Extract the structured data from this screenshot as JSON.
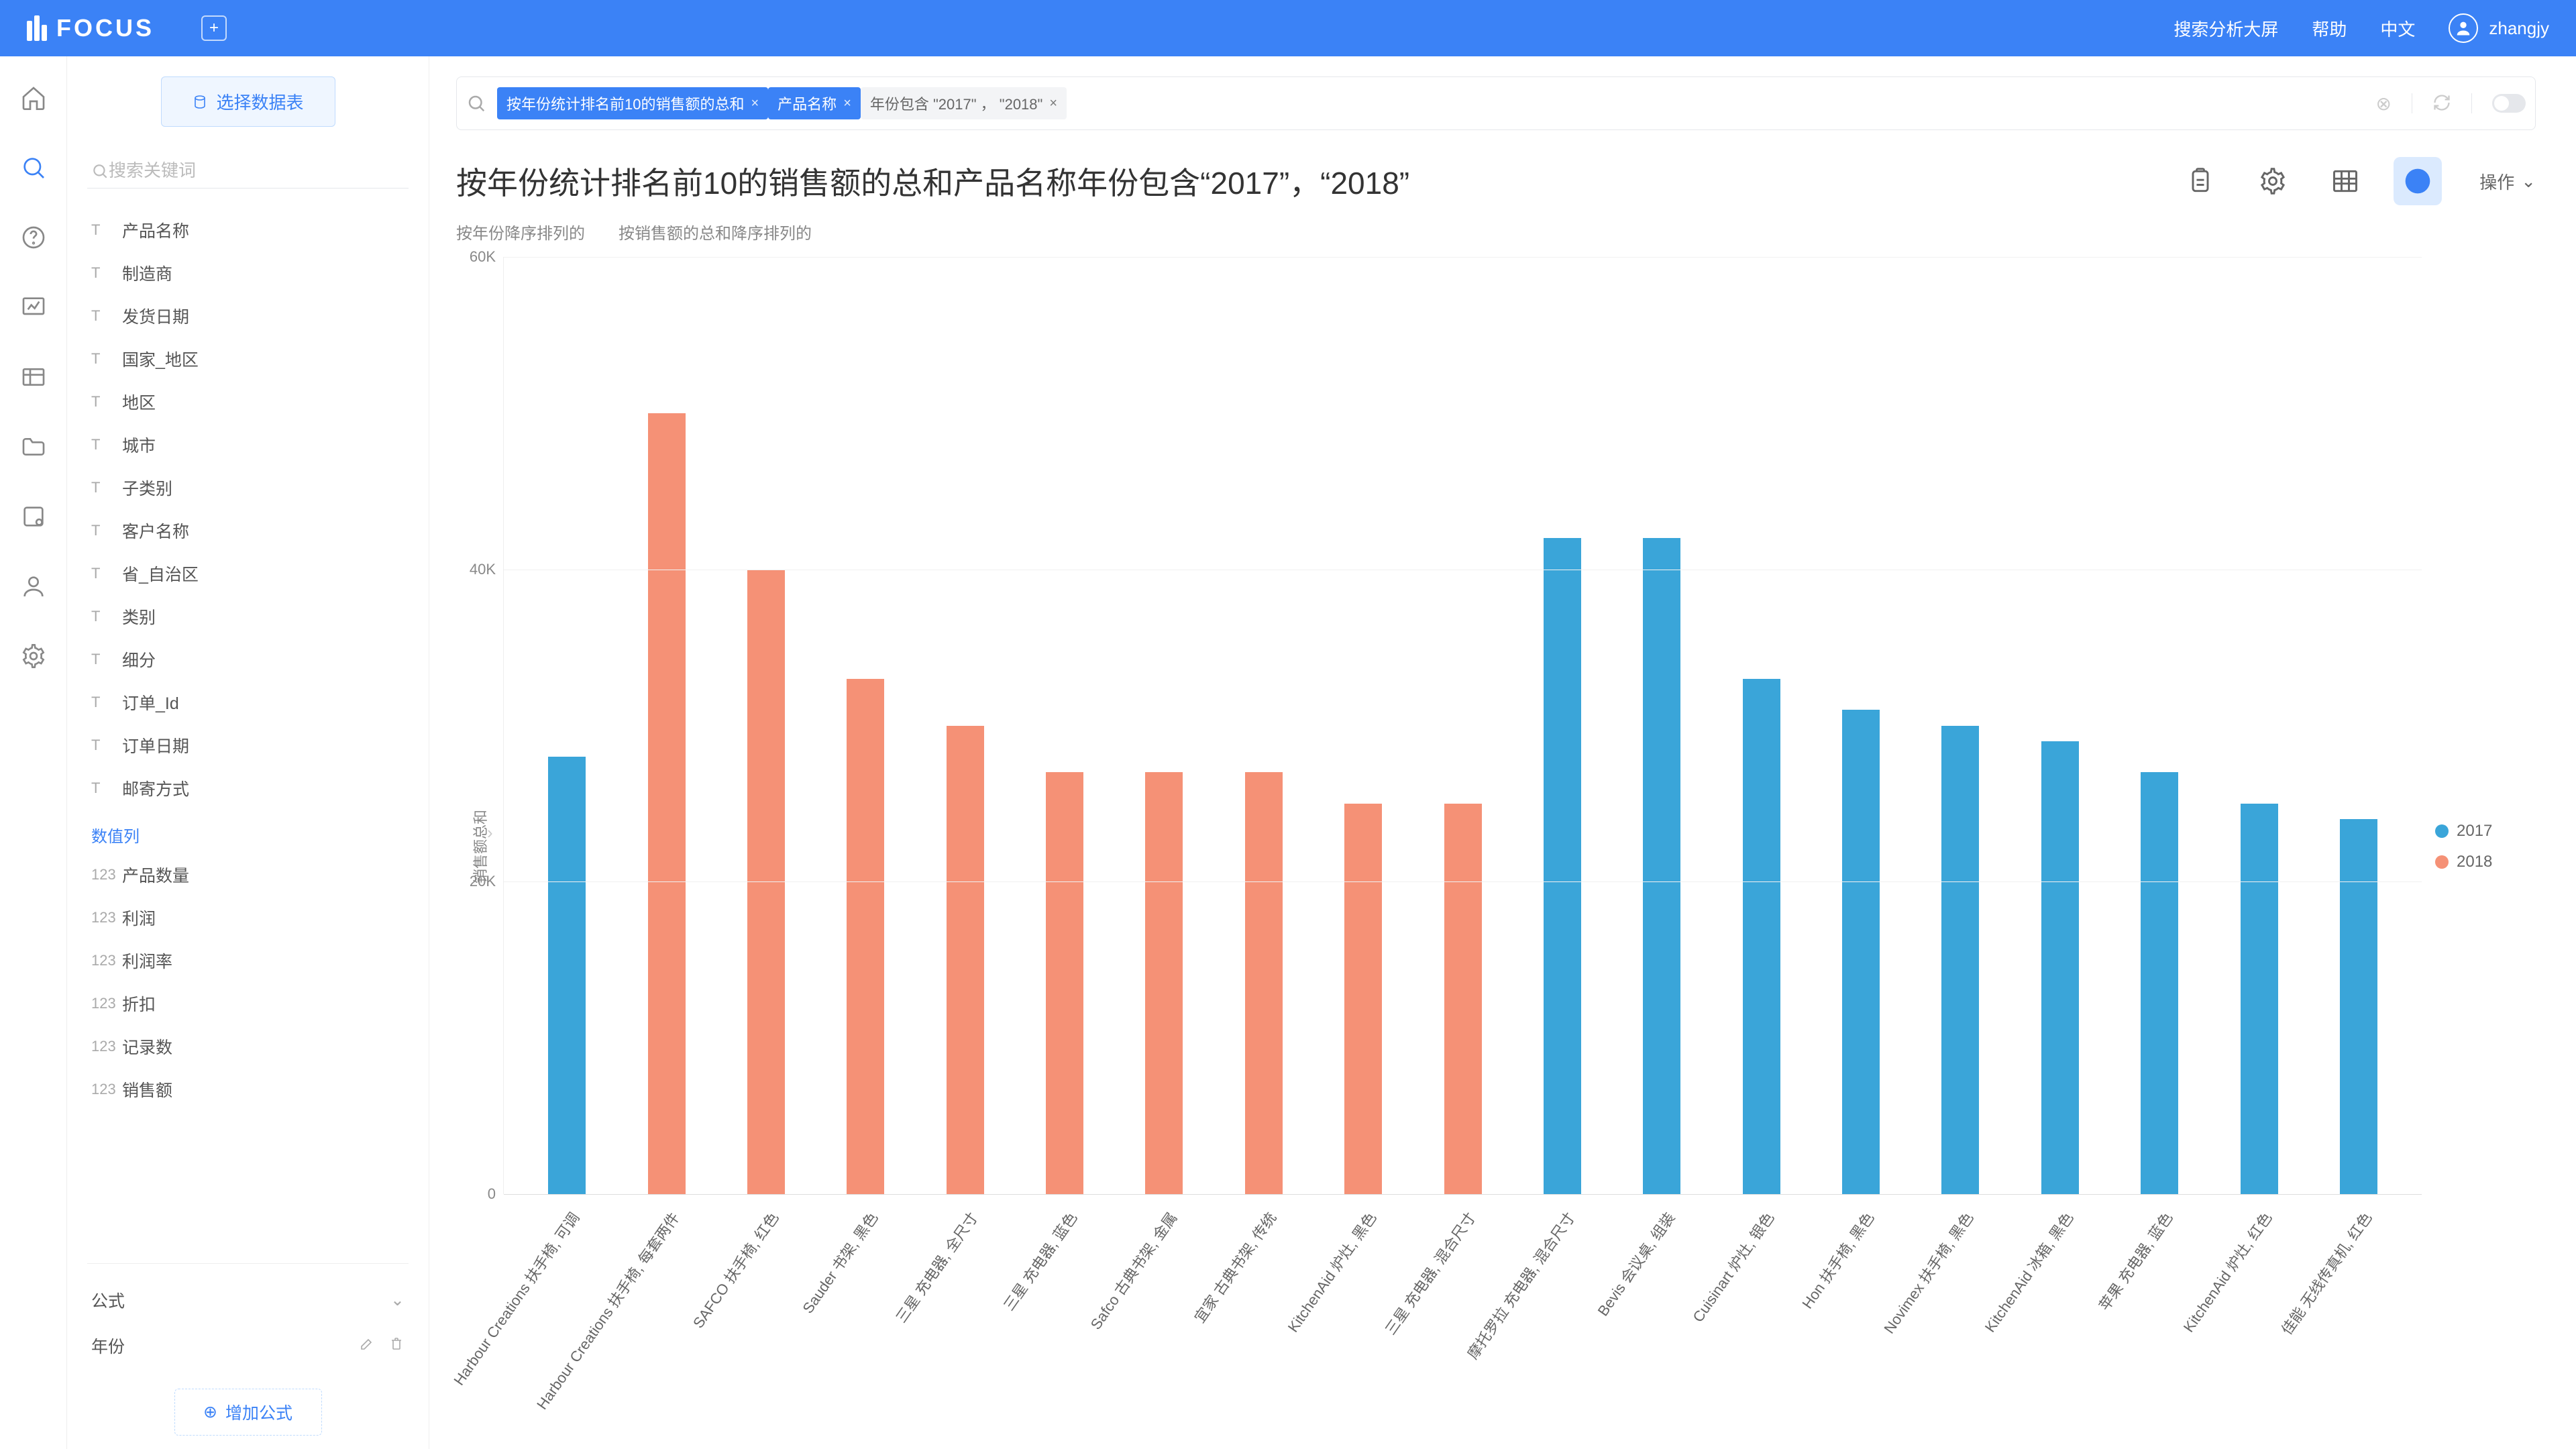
{
  "header": {
    "logo": "FOCUS",
    "links": [
      "搜索分析大屏",
      "帮助",
      "中文"
    ],
    "username": "zhangjy"
  },
  "iconbar": [
    {
      "name": "home-icon"
    },
    {
      "name": "search-icon",
      "active": true
    },
    {
      "name": "help-icon"
    },
    {
      "name": "chart-icon"
    },
    {
      "name": "table-icon"
    },
    {
      "name": "folder-icon"
    },
    {
      "name": "cube-icon"
    },
    {
      "name": "user-icon"
    },
    {
      "name": "settings-icon"
    }
  ],
  "sidebar": {
    "select_source": "选择数据表",
    "search_placeholder": "搜索关键词",
    "text_fields": [
      "产品名称",
      "制造商",
      "发货日期",
      "国家_地区",
      "地区",
      "城市",
      "子类别",
      "客户名称",
      "省_自治区",
      "类别",
      "细分",
      "订单_Id",
      "订单日期",
      "邮寄方式"
    ],
    "numeric_section": "数值列",
    "numeric_fields": [
      "产品数量",
      "利润",
      "利润率",
      "折扣",
      "记录数",
      "销售额"
    ],
    "formula_label": "公式",
    "formula_items": [
      "年份"
    ],
    "add_formula": "增加公式"
  },
  "search": {
    "chips": [
      {
        "text": "按年份统计排名前10的销售额的总和",
        "type": "blue"
      },
      {
        "text": "产品名称",
        "type": "blue"
      },
      {
        "text": "年份包含 \"2017\" ， \"2018\"",
        "type": "gray"
      }
    ]
  },
  "title": "按年份统计排名前10的销售额的总和产品名称年份包含“2017”，“2018”",
  "op_label": "操作",
  "sort_tabs": [
    "按年份降序排列的",
    "按销售额的总和降序排列的"
  ],
  "chart": {
    "type": "bar",
    "ylabel": "销售额总和",
    "ylim_max": 60,
    "yticks": [
      0,
      20,
      40,
      60
    ],
    "ytick_labels": [
      "0",
      "20K",
      "40K",
      "60K"
    ],
    "colors": {
      "2017": "#3aa5d9",
      "2018": "#f59176"
    },
    "legend": [
      "2017",
      "2018"
    ],
    "bars": [
      {
        "label": "Harbour Creations 扶手椅, 可调",
        "series": "2017",
        "value": 28
      },
      {
        "label": "Harbour Creations 扶手椅, 每套两件",
        "series": "2018",
        "value": 50
      },
      {
        "label": "SAFCO 扶手椅, 红色",
        "series": "2018",
        "value": 40
      },
      {
        "label": "Sauder 书架, 黑色",
        "series": "2018",
        "value": 33
      },
      {
        "label": "三星 充电器, 全尺寸",
        "series": "2018",
        "value": 30
      },
      {
        "label": "三星 充电器, 蓝色",
        "series": "2018",
        "value": 27
      },
      {
        "label": "Safco 古典书架, 金属",
        "series": "2018",
        "value": 27
      },
      {
        "label": "宜家 古典书架, 传统",
        "series": "2018",
        "value": 27
      },
      {
        "label": "KitchenAid 炉灶, 黑色",
        "series": "2018",
        "value": 25
      },
      {
        "label": "三星 充电器, 混合尺寸",
        "series": "2018",
        "value": 25
      },
      {
        "label": "摩托罗拉 充电器, 混合尺寸",
        "series": "2017",
        "value": 42
      },
      {
        "label": "Bevis 会议桌, 组装",
        "series": "2017",
        "value": 42
      },
      {
        "label": "Cuisinart 炉灶, 银色",
        "series": "2017",
        "value": 33
      },
      {
        "label": "Hon 扶手椅, 黑色",
        "series": "2017",
        "value": 31
      },
      {
        "label": "Novimex 扶手椅, 黑色",
        "series": "2017",
        "value": 30
      },
      {
        "label": "KitchenAid 冰箱, 黑色",
        "series": "2017",
        "value": 29
      },
      {
        "label": "苹果 充电器, 蓝色",
        "series": "2017",
        "value": 27
      },
      {
        "label": "KitchenAid 炉灶, 红色",
        "series": "2017",
        "value": 25
      },
      {
        "label": "佳能 无线传真机, 红色",
        "series": "2017",
        "value": 24
      }
    ]
  }
}
